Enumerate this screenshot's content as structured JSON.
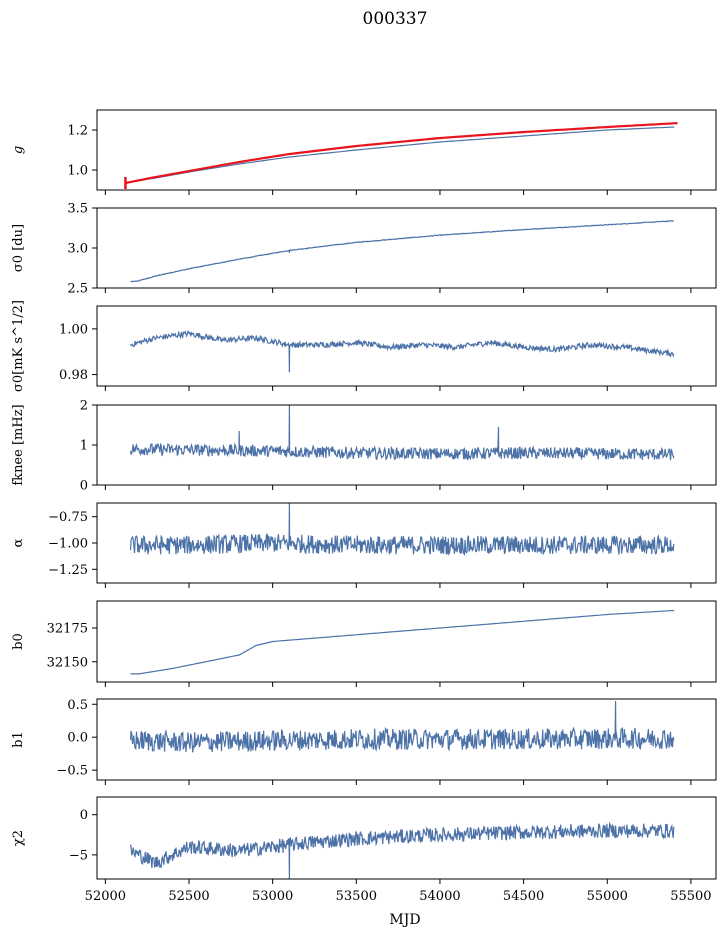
{
  "figure": {
    "title": "000337",
    "xlabel": "MJD"
  },
  "chart_data": [
    {
      "type": "line",
      "id": "g",
      "ylabel": "g",
      "ylabel_italic": true,
      "ylim": [
        0.9,
        1.3
      ],
      "yticks": [
        1.0,
        1.2
      ],
      "ytick_labels": [
        "1.0",
        "1.2"
      ],
      "series": [
        {
          "x": [
            52150,
            52300,
            52500,
            52800,
            53100,
            53500,
            54000,
            54500,
            55000,
            55400
          ],
          "y": [
            0.94,
            0.96,
            0.99,
            1.03,
            1.065,
            1.1,
            1.14,
            1.17,
            1.2,
            1.215
          ]
        },
        {
          "x": [
            52120,
            52150,
            52300,
            52500,
            52800,
            53100,
            53500,
            54000,
            54500,
            55000,
            55430
          ],
          "y": [
            0.935,
            0.94,
            0.965,
            0.995,
            1.04,
            1.08,
            1.12,
            1.16,
            1.19,
            1.215,
            1.235
          ],
          "color": "#e8141c"
        }
      ]
    },
    {
      "type": "line",
      "id": "sigma0du",
      "ylabel": "σ0 [du]",
      "ylim": [
        2.5,
        3.5
      ],
      "yticks": [
        2.5,
        3.0,
        3.5
      ],
      "ytick_labels": [
        "2.5",
        "3.0",
        "3.5"
      ],
      "series": [
        {
          "x": [
            52150,
            52200,
            52300,
            52500,
            52800,
            53100,
            53500,
            54000,
            54500,
            55000,
            55400
          ],
          "y": [
            2.58,
            2.59,
            2.65,
            2.74,
            2.86,
            2.97,
            3.07,
            3.16,
            3.23,
            3.29,
            3.34
          ]
        }
      ]
    },
    {
      "type": "line",
      "id": "sigma0mk",
      "ylabel": "σ0[mK s^1/2]",
      "ylim": [
        0.975,
        1.01
      ],
      "yticks": [
        0.98,
        1.0
      ],
      "ytick_labels": [
        "0.98",
        "1.00"
      ],
      "series": [
        {
          "x": [
            52150,
            52300,
            52500,
            52700,
            52900,
            53100,
            53300,
            53500,
            53700,
            53900,
            54100,
            54300,
            54500,
            54700,
            54900,
            55100,
            55300,
            55400
          ],
          "y": [
            0.993,
            0.996,
            0.998,
            0.995,
            0.996,
            0.993,
            0.993,
            0.994,
            0.992,
            0.993,
            0.992,
            0.994,
            0.992,
            0.991,
            0.993,
            0.992,
            0.99,
            0.989
          ]
        }
      ]
    },
    {
      "type": "line",
      "id": "fknee",
      "ylabel": "fknee [mHz]",
      "ylim": [
        0,
        2
      ],
      "yticks": [
        0,
        1,
        2
      ],
      "ytick_labels": [
        "0",
        "1",
        "2"
      ],
      "series": [
        {
          "x": [
            52150,
            52500,
            53000,
            53500,
            54000,
            54500,
            55000,
            55400
          ],
          "y": [
            0.9,
            0.88,
            0.85,
            0.8,
            0.78,
            0.8,
            0.78,
            0.76
          ]
        }
      ]
    },
    {
      "type": "line",
      "id": "alpha",
      "ylabel": "α",
      "ylim": [
        -1.38,
        -0.62
      ],
      "yticks": [
        -1.25,
        -1.0,
        -0.75
      ],
      "ytick_labels": [
        "−1.25",
        "−1.00",
        "−0.75"
      ],
      "series": [
        {
          "x": [
            52150,
            52500,
            53000,
            53500,
            54000,
            54500,
            55000,
            55400
          ],
          "y": [
            -1.02,
            -1.02,
            -1.0,
            -1.02,
            -1.02,
            -1.02,
            -1.02,
            -1.02
          ]
        }
      ]
    },
    {
      "type": "line",
      "id": "b0",
      "ylabel": "b0",
      "ylim": [
        32135,
        32195
      ],
      "yticks": [
        32150,
        32175
      ],
      "ytick_labels": [
        "32150",
        "32175"
      ],
      "series": [
        {
          "x": [
            52150,
            52200,
            52400,
            52600,
            52800,
            52900,
            53000,
            53200,
            53500,
            54000,
            54500,
            55000,
            55400
          ],
          "y": [
            32141,
            32141,
            32145,
            32150,
            32155,
            32162,
            32165,
            32167,
            32170,
            32175,
            32180,
            32185,
            32188
          ]
        }
      ]
    },
    {
      "type": "line",
      "id": "b1",
      "ylabel": "b1",
      "ylim": [
        -0.65,
        0.58
      ],
      "yticks": [
        -0.5,
        0.0,
        0.5
      ],
      "ytick_labels": [
        "−0.5",
        "0.0",
        "0.5"
      ],
      "series": [
        {
          "x": [
            52150,
            52500,
            53000,
            53500,
            54000,
            54500,
            55000,
            55400
          ],
          "y": [
            -0.05,
            -0.08,
            -0.05,
            -0.03,
            -0.03,
            -0.03,
            -0.02,
            -0.02
          ]
        }
      ]
    },
    {
      "type": "line",
      "id": "chi2",
      "ylabel": "χ2",
      "ylim": [
        -8,
        2.2
      ],
      "yticks": [
        -5,
        0
      ],
      "ytick_labels": [
        "−5",
        "0"
      ],
      "series": [
        {
          "x": [
            52150,
            52300,
            52500,
            52800,
            53000,
            53200,
            53500,
            54000,
            54500,
            55000,
            55400
          ],
          "y": [
            -4.5,
            -6.0,
            -4.0,
            -4.5,
            -4.0,
            -3.5,
            -3.0,
            -2.5,
            -2.2,
            -2.0,
            -2.0
          ]
        }
      ]
    }
  ],
  "xaxis": {
    "xlim": [
      51950,
      55650
    ],
    "xticks": [
      52000,
      52500,
      53000,
      53500,
      54000,
      54500,
      55000,
      55500
    ],
    "xtick_labels": [
      "52000",
      "52500",
      "53000",
      "53500",
      "54000",
      "54500",
      "55000",
      "55500"
    ]
  },
  "colors": {
    "series": "#4c72a8",
    "fit": "#e8141c"
  }
}
